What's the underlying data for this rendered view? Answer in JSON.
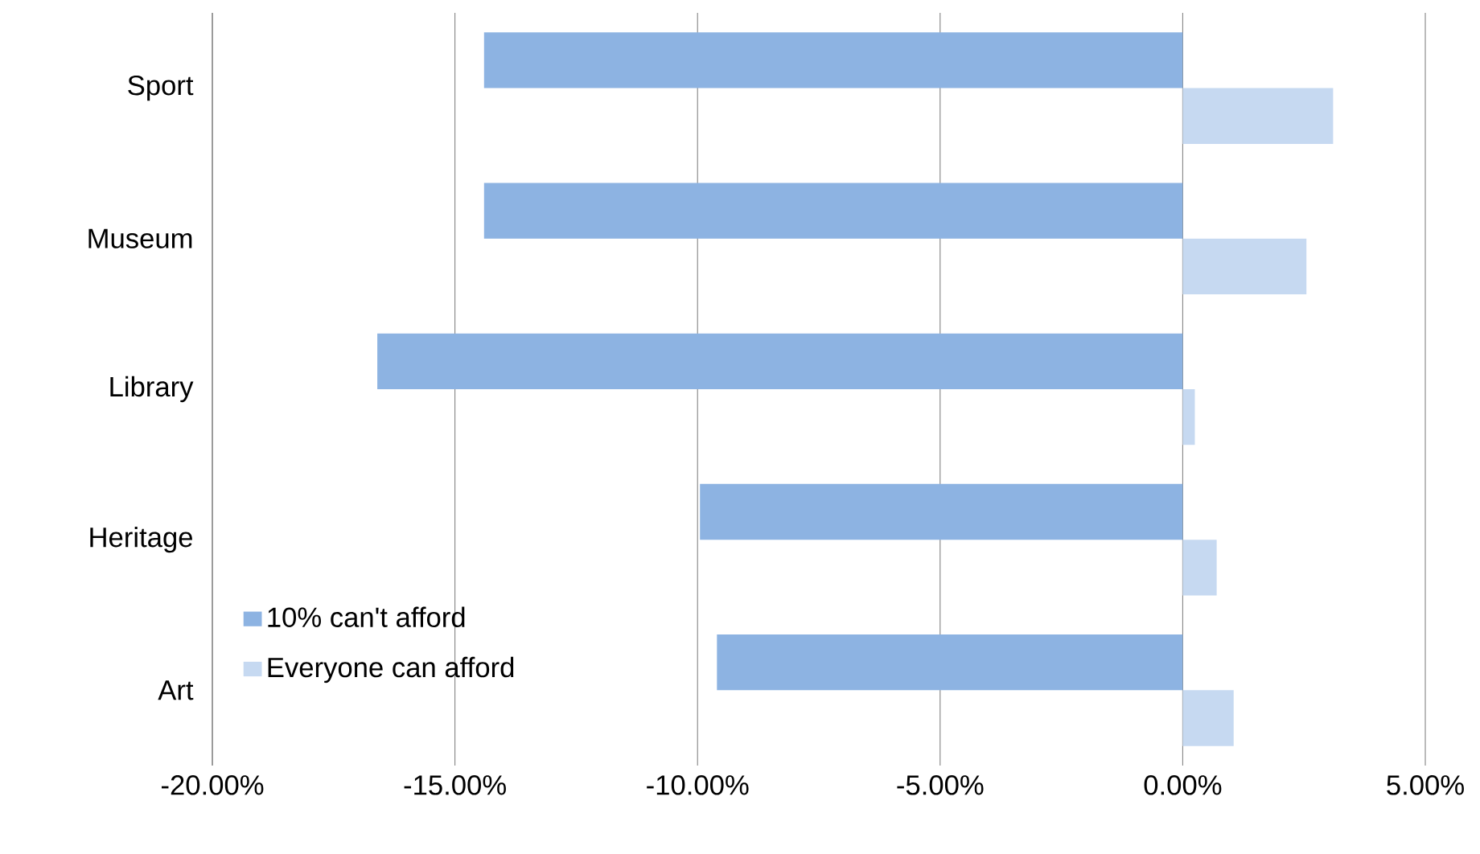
{
  "chart_data": {
    "type": "bar",
    "orientation": "horizontal",
    "categories": [
      "Sport",
      "Museum",
      "Library",
      "Heritage",
      "Art"
    ],
    "series": [
      {
        "name": "10% can't afford",
        "color": "#8db3e2",
        "values": [
          -14.4,
          -14.4,
          -16.6,
          -9.95,
          -9.6
        ]
      },
      {
        "name": "Everyone can afford",
        "color": "#c6d9f1",
        "values": [
          3.1,
          2.55,
          0.25,
          0.7,
          1.05
        ]
      }
    ],
    "xlim": [
      -20,
      5
    ],
    "xticks": [
      {
        "value": -20,
        "label": "-20.00%"
      },
      {
        "value": -15,
        "label": "-15.00%"
      },
      {
        "value": -10,
        "label": "-10.00%"
      },
      {
        "value": -5,
        "label": "-5.00%"
      },
      {
        "value": 0,
        "label": "0.00%"
      },
      {
        "value": 5,
        "label": "5.00%"
      }
    ],
    "grid": "x",
    "legend": "bottom left"
  }
}
